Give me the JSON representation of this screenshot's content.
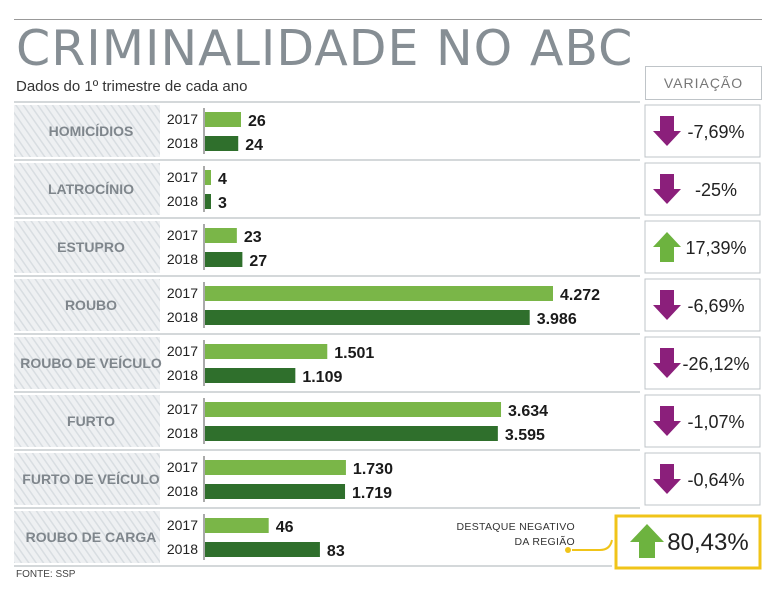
{
  "header": {
    "title": "CRIMINALIDADE NO ABC",
    "subtitle": "Dados do 1º trimestre de cada ano",
    "variation_header": "VARIAÇÃO"
  },
  "note": {
    "line1": "DESTAQUE NEGATIVO",
    "line2": "DA REGIÃO"
  },
  "source": "FONTE: SSP",
  "colors": {
    "bar_2017": "#7ab648",
    "bar_2018": "#2f6f2c",
    "arrow_down": "#8b1f7b",
    "arrow_up": "#6db33f",
    "highlight_border": "#f0c419",
    "label_band": "#d8dde1",
    "rule": "#a9b0b5"
  },
  "chart_data": {
    "type": "bar",
    "orientation": "horizontal",
    "title": "CRIMINALIDADE NO ABC",
    "subtitle": "Dados do 1º trimestre de cada ano",
    "years": [
      "2017",
      "2018"
    ],
    "categories": [
      {
        "name": "HOMICÍDIOS",
        "v2017": 26,
        "l2017": "26",
        "v2018": 24,
        "l2018": "24",
        "variation": "-7,69%",
        "direction": "down",
        "highlight": false
      },
      {
        "name": "LATROCÍNIO",
        "v2017": 4,
        "l2017": "4",
        "v2018": 3,
        "l2018": "3",
        "variation": "-25%",
        "direction": "down",
        "highlight": false
      },
      {
        "name": "ESTUPRO",
        "v2017": 23,
        "l2017": "23",
        "v2018": 27,
        "l2018": "27",
        "variation": "17,39%",
        "direction": "up",
        "highlight": false
      },
      {
        "name": "ROUBO",
        "v2017": 4272,
        "l2017": "4.272",
        "v2018": 3986,
        "l2018": "3.986",
        "variation": "-6,69%",
        "direction": "down",
        "highlight": false
      },
      {
        "name": "ROUBO DE VEÍCULO",
        "v2017": 1501,
        "l2017": "1.501",
        "v2018": 1109,
        "l2018": "1.109",
        "variation": "-26,12%",
        "direction": "down",
        "highlight": false
      },
      {
        "name": "FURTO",
        "v2017": 3634,
        "l2017": "3.634",
        "v2018": 3595,
        "l2018": "3.595",
        "variation": "-1,07%",
        "direction": "down",
        "highlight": false
      },
      {
        "name": "FURTO DE VEÍCULO",
        "v2017": 1730,
        "l2017": "1.730",
        "v2018": 1719,
        "l2018": "1.719",
        "variation": "-0,64%",
        "direction": "down",
        "highlight": false
      },
      {
        "name": "ROUBO DE CARGA",
        "v2017": 46,
        "l2017": "46",
        "v2018": 83,
        "l2018": "83",
        "variation": "80,43%",
        "direction": "up",
        "highlight": true
      }
    ]
  }
}
